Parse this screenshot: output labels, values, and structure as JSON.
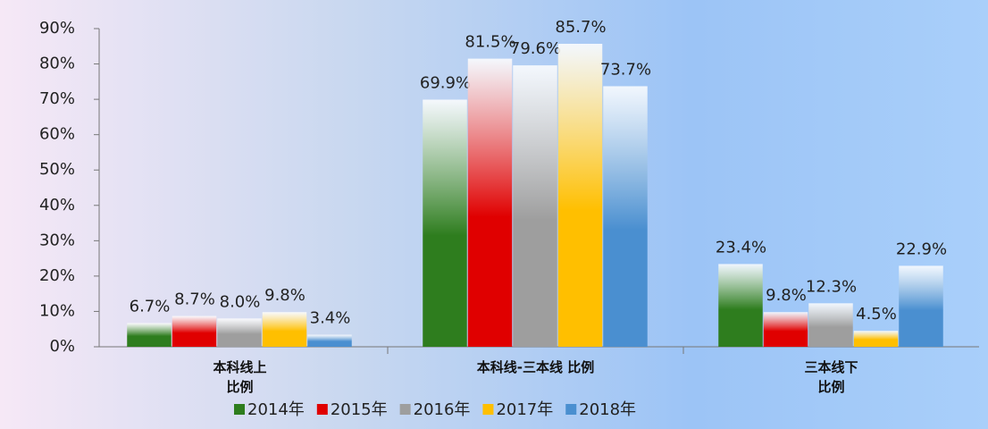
{
  "chart_data": {
    "type": "bar",
    "categories": [
      "本科线上\n比例",
      "本科线-三本线 比例",
      "三本线下\n比例"
    ],
    "series": [
      {
        "name": "2014年",
        "color": "#2e7d1e",
        "values": [
          6.7,
          69.9,
          23.4
        ],
        "value_labels": [
          "6.7%",
          "69.9%",
          "23.4%"
        ]
      },
      {
        "name": "2015年",
        "color": "#e00000",
        "values": [
          8.7,
          81.5,
          9.8
        ],
        "value_labels": [
          "8.7%",
          "81.5%",
          "9.8%"
        ]
      },
      {
        "name": "2016年",
        "color": "#9e9e9e",
        "values": [
          8.0,
          79.6,
          12.3
        ],
        "value_labels": [
          "8.0%",
          "79.6%",
          "12.3%"
        ]
      },
      {
        "name": "2017年",
        "color": "#ffbf00",
        "values": [
          9.8,
          85.7,
          4.5
        ],
        "value_labels": [
          "9.8%",
          "85.7%",
          "4.5%"
        ]
      },
      {
        "name": "2018年",
        "color": "#4a8fd0",
        "values": [
          3.4,
          73.7,
          22.9
        ],
        "value_labels": [
          "3.4%",
          "73.7%",
          "22.9%"
        ]
      }
    ],
    "ylim": [
      0,
      90
    ],
    "yticks": [
      {
        "value": 0,
        "label": "0%"
      },
      {
        "value": 10,
        "label": "10%"
      },
      {
        "value": 20,
        "label": "20%"
      },
      {
        "value": 30,
        "label": "30%"
      },
      {
        "value": 40,
        "label": "40%"
      },
      {
        "value": 50,
        "label": "50%"
      },
      {
        "value": 60,
        "label": "60%"
      },
      {
        "value": 70,
        "label": "70%"
      },
      {
        "value": 80,
        "label": "80%"
      },
      {
        "value": 90,
        "label": "90%"
      }
    ],
    "legend": "bottom"
  }
}
